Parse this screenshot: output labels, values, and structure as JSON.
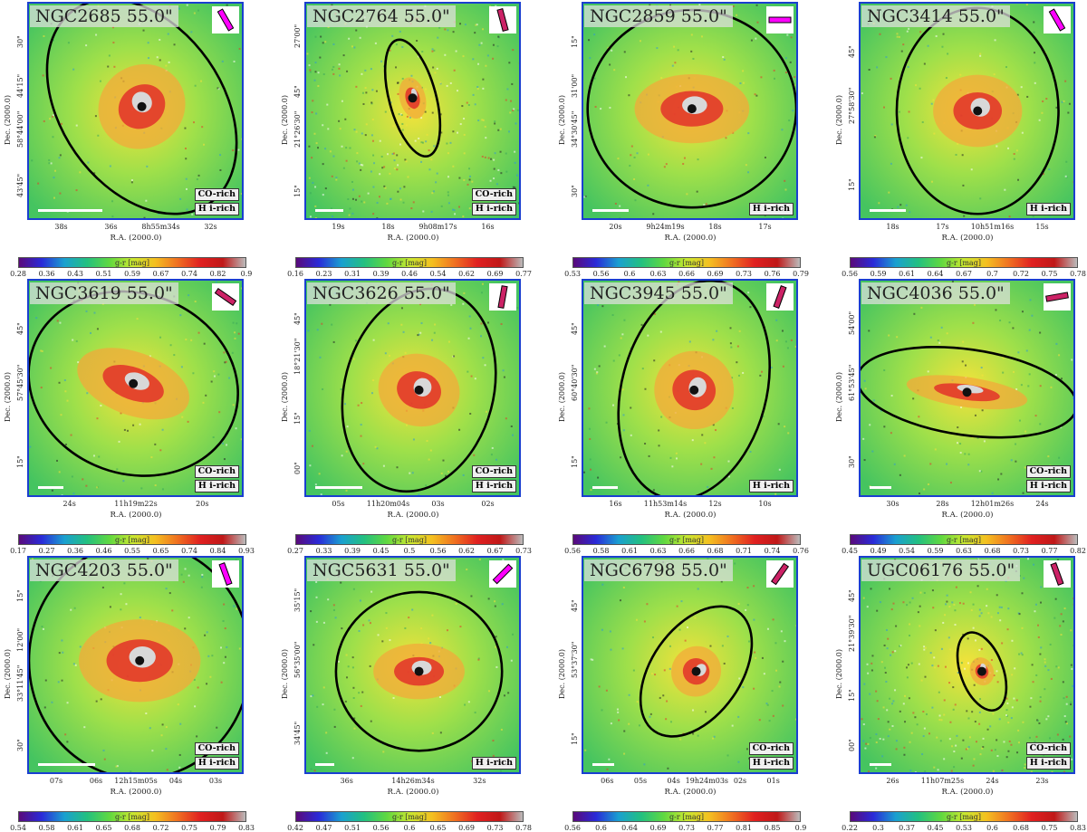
{
  "figure": {
    "description_visible": "none",
    "colorbar_label": "g-r [mag]",
    "xaxis_label": "R.A. (2000.0)",
    "yaxis_label": "Dec. (2000.0)",
    "panels": [
      {
        "title": "NGC2685 55.0\"",
        "co_tag": "CO-rich",
        "hi_tag": "H i-rich",
        "yticks": [
          "30\"",
          "44'15\"",
          "58°44'00\"",
          "43'45\""
        ],
        "xticks": [
          "38s",
          "36s",
          "8h55m34s",
          "32s"
        ],
        "cbar_ticks": [
          "0.28",
          "0.36",
          "0.43",
          "0.51",
          "0.59",
          "0.67",
          "0.74",
          "0.82",
          "0.9"
        ],
        "ellipse": {
          "rx": 0.38,
          "ry": 0.55,
          "angle": -35,
          "cx": 0.53,
          "cy": 0.48
        },
        "beam_angle": -30,
        "beam_color": "#ff00ff",
        "scale_frac": 0.3
      },
      {
        "title": "NGC2764 55.0\"",
        "co_tag": "CO-rich",
        "hi_tag": "H i-rich",
        "yticks": [
          "27'00\"",
          "45\"",
          "21°26'30\"",
          "15\""
        ],
        "xticks": [
          "19s",
          "18s",
          "9h08m17s",
          "16s"
        ],
        "cbar_ticks": [
          "0.16",
          "0.23",
          "0.31",
          "0.39",
          "0.46",
          "0.54",
          "0.62",
          "0.69",
          "0.77"
        ],
        "ellipse": {
          "rx": 0.11,
          "ry": 0.28,
          "angle": -15,
          "cx": 0.5,
          "cy": 0.44
        },
        "beam_angle": -15,
        "beam_color": "#cc2266",
        "scale_frac": 0.13
      },
      {
        "title": "NGC2859 55.0\"",
        "co_tag": "",
        "hi_tag": "H i-rich",
        "yticks": [
          "15\"",
          "31'00\"",
          "34°30'45\"",
          "30\""
        ],
        "xticks": [
          "20s",
          "9h24m19s",
          "18s",
          "17s"
        ],
        "cbar_ticks": [
          "0.53",
          "0.56",
          "0.6",
          "0.63",
          "0.66",
          "0.69",
          "0.73",
          "0.76",
          "0.79"
        ],
        "ellipse": {
          "rx": 0.49,
          "ry": 0.46,
          "angle": 0,
          "cx": 0.51,
          "cy": 0.49
        },
        "beam_angle": 90,
        "beam_color": "#ff00ff",
        "scale_frac": 0.17
      },
      {
        "title": "NGC3414 55.0\"",
        "co_tag": "",
        "hi_tag": "H i-rich",
        "yticks": [
          "45\"",
          "27°58'30\"",
          "15\""
        ],
        "xticks": [
          "18s",
          "17s",
          "10h51m16s",
          "15s"
        ],
        "cbar_ticks": [
          "0.56",
          "0.59",
          "0.61",
          "0.64",
          "0.67",
          "0.7",
          "0.72",
          "0.75",
          "0.78"
        ],
        "ellipse": {
          "rx": 0.38,
          "ry": 0.48,
          "angle": 0,
          "cx": 0.55,
          "cy": 0.5
        },
        "beam_angle": -30,
        "beam_color": "#ff00ff",
        "scale_frac": 0.17
      },
      {
        "title": "NGC3619 55.0\"",
        "co_tag": "CO-rich",
        "hi_tag": "H i-rich",
        "yticks": [
          "45\"",
          "57°45'30\"",
          "15\""
        ],
        "xticks": [
          "24s",
          "11h19m22s",
          "20s"
        ],
        "cbar_ticks": [
          "0.17",
          "0.27",
          "0.36",
          "0.46",
          "0.55",
          "0.65",
          "0.74",
          "0.84",
          "0.93"
        ],
        "ellipse": {
          "rx": 0.5,
          "ry": 0.42,
          "angle": 20,
          "cx": 0.49,
          "cy": 0.48
        },
        "beam_angle": -55,
        "beam_color": "#cc2266",
        "scale_frac": 0.12
      },
      {
        "title": "NGC3626 55.0\"",
        "co_tag": "CO-rich",
        "hi_tag": "H i-rich",
        "yticks": [
          "45\"",
          "18°21'30\"",
          "15\"",
          "00\""
        ],
        "xticks": [
          "05s",
          "11h20m04s",
          "03s",
          "02s"
        ],
        "cbar_ticks": [
          "0.27",
          "0.33",
          "0.39",
          "0.45",
          "0.5",
          "0.56",
          "0.62",
          "0.67",
          "0.73"
        ],
        "ellipse": {
          "rx": 0.35,
          "ry": 0.48,
          "angle": 15,
          "cx": 0.53,
          "cy": 0.51
        },
        "beam_angle": 10,
        "beam_color": "#cc2266",
        "scale_frac": 0.22
      },
      {
        "title": "NGC3945 55.0\"",
        "co_tag": "",
        "hi_tag": "H i-rich",
        "yticks": [
          "45\"",
          "60°40'30\"",
          "15\""
        ],
        "xticks": [
          "16s",
          "11h53m14s",
          "12s",
          "10s"
        ],
        "cbar_ticks": [
          "0.56",
          "0.58",
          "0.61",
          "0.63",
          "0.66",
          "0.68",
          "0.71",
          "0.74",
          "0.76"
        ],
        "ellipse": {
          "rx": 0.34,
          "ry": 0.52,
          "angle": 15,
          "cx": 0.52,
          "cy": 0.51
        },
        "beam_angle": 20,
        "beam_color": "#cc2266",
        "scale_frac": 0.12
      },
      {
        "title": "NGC4036 55.0\"",
        "co_tag": "CO-rich",
        "hi_tag": "H i-rich",
        "yticks": [
          "54'00\"",
          "61°53'45\"",
          "30\""
        ],
        "xticks": [
          "30s",
          "28s",
          "12h01m26s",
          "24s"
        ],
        "cbar_ticks": [
          "0.45",
          "0.49",
          "0.54",
          "0.59",
          "0.63",
          "0.68",
          "0.73",
          "0.77",
          "0.82"
        ],
        "ellipse": {
          "rx": 0.52,
          "ry": 0.2,
          "angle": 8,
          "cx": 0.5,
          "cy": 0.52
        },
        "beam_angle": 80,
        "beam_color": "#cc2266",
        "scale_frac": 0.1
      },
      {
        "title": "NGC4203 55.0\"",
        "co_tag": "CO-rich",
        "hi_tag": "H i-rich",
        "yticks": [
          "15\"",
          "12'00\"",
          "33°11'45\"",
          "30\""
        ],
        "xticks": [
          "07s",
          "06s",
          "12h15m05s",
          "04s",
          "03s"
        ],
        "cbar_ticks": [
          "0.54",
          "0.58",
          "0.61",
          "0.65",
          "0.68",
          "0.72",
          "0.75",
          "0.79",
          "0.83"
        ],
        "ellipse": {
          "rx": 0.52,
          "ry": 0.55,
          "angle": 0,
          "cx": 0.52,
          "cy": 0.48
        },
        "beam_angle": -20,
        "beam_color": "#ff00ff",
        "scale_frac": 0.27
      },
      {
        "title": "NGC5631 55.0\"",
        "co_tag": "",
        "hi_tag": "H i-rich",
        "yticks": [
          "35'15\"",
          "56°35'00\"",
          "34'45\""
        ],
        "xticks": [
          "36s",
          "14h26m34s",
          "32s"
        ],
        "cbar_ticks": [
          "0.42",
          "0.47",
          "0.51",
          "0.56",
          "0.6",
          "0.65",
          "0.69",
          "0.73",
          "0.78"
        ],
        "ellipse": {
          "rx": 0.39,
          "ry": 0.37,
          "angle": 0,
          "cx": 0.53,
          "cy": 0.53
        },
        "beam_angle": 45,
        "beam_color": "#ff00ff",
        "scale_frac": 0.09
      },
      {
        "title": "NGC6798 55.0\"",
        "co_tag": "CO-rich",
        "hi_tag": "H i-rich",
        "yticks": [
          "45\"",
          "53°37'30\"",
          "15\""
        ],
        "xticks": [
          "06s",
          "05s",
          "04s",
          "19h24m03s",
          "02s",
          "01s"
        ],
        "cbar_ticks": [
          "0.56",
          "0.6",
          "0.64",
          "0.69",
          "0.73",
          "0.77",
          "0.81",
          "0.85",
          "0.9"
        ],
        "ellipse": {
          "rx": 0.21,
          "ry": 0.34,
          "angle": 35,
          "cx": 0.53,
          "cy": 0.53
        },
        "beam_angle": 35,
        "beam_color": "#cc2266",
        "scale_frac": 0.1
      },
      {
        "title": "UGC06176 55.0\"",
        "co_tag": "CO-rich",
        "hi_tag": "H i-rich",
        "yticks": [
          "45\"",
          "21°39'30\"",
          "15\"",
          "00\""
        ],
        "xticks": [
          "26s",
          "11h07m25s",
          "24s",
          "23s"
        ],
        "cbar_ticks": [
          "0.22",
          "0.3",
          "0.37",
          "0.45",
          "0.53",
          "0.6",
          "0.68",
          "0.75",
          "0.83"
        ],
        "ellipse": {
          "rx": 0.1,
          "ry": 0.19,
          "angle": -20,
          "cx": 0.57,
          "cy": 0.53
        },
        "beam_angle": -20,
        "beam_color": "#cc2266",
        "scale_frac": 0.1
      }
    ]
  }
}
